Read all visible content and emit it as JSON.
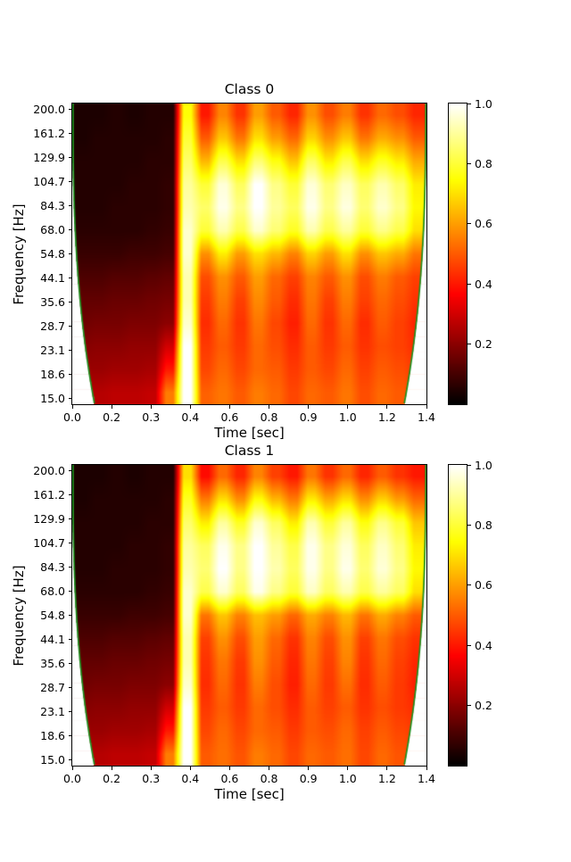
{
  "figure": {
    "background": "#ffffff",
    "text_color": "#000000"
  },
  "chart_data": [
    {
      "type": "heatmap",
      "title": "Class 0",
      "xlabel": "Time [sec]",
      "ylabel": "Frequency [Hz]",
      "x_tick_labels": [
        "0.0",
        "0.2",
        "0.3",
        "0.4",
        "0.6",
        "0.8",
        "0.9",
        "1.0",
        "1.2",
        "1.4"
      ],
      "y_tick_labels": [
        "200.0",
        "161.2",
        "129.9",
        "104.7",
        "84.3",
        "68.0",
        "54.8",
        "44.1",
        "35.6",
        "28.7",
        "23.1",
        "18.6",
        "15.0"
      ],
      "colorbar_tick_labels": [
        "1.0",
        "0.8",
        "0.6",
        "0.4",
        "0.2"
      ],
      "colormap": "hot",
      "coi_color": "#1d8f1d",
      "coi_note": "green cone-of-influence curve, masked white outside",
      "values": [
        [
          0.04,
          0.04,
          0.05,
          0.04,
          0.05,
          0.05,
          0.75,
          0.4,
          0.56,
          0.44,
          0.6,
          0.5,
          0.42,
          0.58,
          0.48,
          0.55,
          0.44,
          0.52,
          0.48,
          0.42
        ],
        [
          0.04,
          0.05,
          0.05,
          0.05,
          0.05,
          0.06,
          0.8,
          0.5,
          0.66,
          0.54,
          0.7,
          0.6,
          0.52,
          0.68,
          0.58,
          0.66,
          0.54,
          0.62,
          0.58,
          0.5
        ],
        [
          0.05,
          0.05,
          0.05,
          0.05,
          0.06,
          0.06,
          0.85,
          0.64,
          0.82,
          0.7,
          0.86,
          0.76,
          0.66,
          0.84,
          0.72,
          0.82,
          0.7,
          0.78,
          0.72,
          0.62
        ],
        [
          0.05,
          0.05,
          0.05,
          0.06,
          0.06,
          0.07,
          0.9,
          0.8,
          0.96,
          0.84,
          1.0,
          0.88,
          0.8,
          0.96,
          0.86,
          0.94,
          0.84,
          0.92,
          0.85,
          0.72
        ],
        [
          0.05,
          0.05,
          0.06,
          0.06,
          0.06,
          0.07,
          0.92,
          0.85,
          0.98,
          0.88,
          1.0,
          0.9,
          0.84,
          0.98,
          0.88,
          0.97,
          0.86,
          0.95,
          0.88,
          0.74
        ],
        [
          0.06,
          0.06,
          0.06,
          0.06,
          0.07,
          0.08,
          0.95,
          0.8,
          0.92,
          0.82,
          0.95,
          0.86,
          0.78,
          0.92,
          0.82,
          0.9,
          0.8,
          0.88,
          0.82,
          0.7
        ],
        [
          0.08,
          0.08,
          0.08,
          0.09,
          0.09,
          0.1,
          0.95,
          0.58,
          0.72,
          0.6,
          0.7,
          0.64,
          0.56,
          0.68,
          0.6,
          0.7,
          0.58,
          0.66,
          0.62,
          0.54
        ],
        [
          0.11,
          0.11,
          0.12,
          0.12,
          0.13,
          0.14,
          0.92,
          0.48,
          0.58,
          0.5,
          0.6,
          0.52,
          0.46,
          0.56,
          0.5,
          0.58,
          0.48,
          0.55,
          0.5,
          0.46
        ],
        [
          0.14,
          0.14,
          0.15,
          0.15,
          0.16,
          0.17,
          0.92,
          0.45,
          0.55,
          0.46,
          0.57,
          0.5,
          0.43,
          0.54,
          0.46,
          0.55,
          0.46,
          0.52,
          0.48,
          0.44
        ],
        [
          0.16,
          0.17,
          0.17,
          0.18,
          0.18,
          0.2,
          0.95,
          0.43,
          0.52,
          0.44,
          0.54,
          0.47,
          0.41,
          0.52,
          0.44,
          0.52,
          0.43,
          0.5,
          0.46,
          0.42
        ],
        [
          0.19,
          0.2,
          0.2,
          0.21,
          0.21,
          0.3,
          1.0,
          0.45,
          0.5,
          0.45,
          0.52,
          0.48,
          0.43,
          0.5,
          0.45,
          0.5,
          0.44,
          0.48,
          0.46,
          0.43
        ],
        [
          0.22,
          0.22,
          0.23,
          0.23,
          0.24,
          0.4,
          1.0,
          0.47,
          0.52,
          0.47,
          0.52,
          0.5,
          0.45,
          0.5,
          0.47,
          0.52,
          0.46,
          0.5,
          0.48,
          0.45
        ],
        [
          0.26,
          0.26,
          0.27,
          0.27,
          0.28,
          0.55,
          1.0,
          0.51,
          0.54,
          0.5,
          0.55,
          0.52,
          0.47,
          0.52,
          0.5,
          0.54,
          0.48,
          0.52,
          0.5,
          0.47
        ]
      ]
    },
    {
      "type": "heatmap",
      "title": "Class 1",
      "xlabel": "Time [sec]",
      "ylabel": "Frequency [Hz]",
      "x_tick_labels": [
        "0.0",
        "0.2",
        "0.3",
        "0.4",
        "0.6",
        "0.8",
        "0.9",
        "1.0",
        "1.2",
        "1.4"
      ],
      "y_tick_labels": [
        "200.0",
        "161.2",
        "129.9",
        "104.7",
        "84.3",
        "68.0",
        "54.8",
        "44.1",
        "35.6",
        "28.7",
        "23.1",
        "18.6",
        "15.0"
      ],
      "colorbar_tick_labels": [
        "1.0",
        "0.8",
        "0.6",
        "0.4",
        "0.2"
      ],
      "colormap": "hot",
      "coi_color": "#1d8f1d",
      "coi_note": "green cone-of-influence curve, masked white outside",
      "values": [
        [
          0.04,
          0.04,
          0.05,
          0.04,
          0.05,
          0.05,
          0.7,
          0.38,
          0.52,
          0.42,
          0.56,
          0.46,
          0.4,
          0.54,
          0.44,
          0.52,
          0.42,
          0.5,
          0.44,
          0.4
        ],
        [
          0.04,
          0.05,
          0.05,
          0.05,
          0.05,
          0.06,
          0.78,
          0.55,
          0.7,
          0.58,
          0.75,
          0.64,
          0.55,
          0.72,
          0.62,
          0.7,
          0.58,
          0.68,
          0.6,
          0.52
        ],
        [
          0.05,
          0.05,
          0.05,
          0.05,
          0.06,
          0.06,
          0.85,
          0.72,
          0.9,
          0.78,
          0.95,
          0.84,
          0.72,
          0.92,
          0.8,
          0.9,
          0.76,
          0.88,
          0.8,
          0.66
        ],
        [
          0.05,
          0.05,
          0.05,
          0.06,
          0.06,
          0.07,
          0.9,
          0.84,
          0.98,
          0.88,
          1.0,
          0.9,
          0.82,
          0.98,
          0.88,
          0.96,
          0.84,
          0.94,
          0.86,
          0.72
        ],
        [
          0.05,
          0.05,
          0.06,
          0.06,
          0.06,
          0.07,
          0.92,
          0.86,
          1.0,
          0.88,
          1.0,
          0.92,
          0.84,
          0.98,
          0.88,
          0.98,
          0.86,
          0.96,
          0.88,
          0.74
        ],
        [
          0.06,
          0.06,
          0.06,
          0.06,
          0.07,
          0.08,
          0.95,
          0.82,
          0.95,
          0.84,
          0.98,
          0.88,
          0.8,
          0.94,
          0.84,
          0.92,
          0.82,
          0.9,
          0.84,
          0.7
        ],
        [
          0.08,
          0.08,
          0.08,
          0.09,
          0.09,
          0.1,
          0.95,
          0.54,
          0.66,
          0.56,
          0.65,
          0.6,
          0.52,
          0.62,
          0.56,
          0.64,
          0.54,
          0.62,
          0.56,
          0.5
        ],
        [
          0.11,
          0.11,
          0.12,
          0.12,
          0.13,
          0.14,
          0.92,
          0.46,
          0.58,
          0.48,
          0.6,
          0.52,
          0.44,
          0.56,
          0.48,
          0.58,
          0.46,
          0.54,
          0.48,
          0.44
        ],
        [
          0.14,
          0.14,
          0.15,
          0.15,
          0.16,
          0.17,
          0.92,
          0.44,
          0.54,
          0.45,
          0.58,
          0.5,
          0.42,
          0.54,
          0.46,
          0.56,
          0.44,
          0.52,
          0.46,
          0.42
        ],
        [
          0.16,
          0.17,
          0.17,
          0.18,
          0.18,
          0.2,
          0.95,
          0.43,
          0.52,
          0.44,
          0.55,
          0.48,
          0.41,
          0.52,
          0.45,
          0.53,
          0.43,
          0.5,
          0.45,
          0.41
        ],
        [
          0.19,
          0.2,
          0.2,
          0.21,
          0.21,
          0.3,
          1.0,
          0.45,
          0.5,
          0.45,
          0.52,
          0.48,
          0.43,
          0.5,
          0.46,
          0.5,
          0.44,
          0.48,
          0.45,
          0.43
        ],
        [
          0.22,
          0.22,
          0.23,
          0.23,
          0.24,
          0.4,
          1.0,
          0.47,
          0.52,
          0.47,
          0.52,
          0.5,
          0.45,
          0.5,
          0.48,
          0.52,
          0.46,
          0.5,
          0.47,
          0.45
        ],
        [
          0.26,
          0.26,
          0.27,
          0.27,
          0.28,
          0.55,
          1.0,
          0.5,
          0.53,
          0.49,
          0.55,
          0.52,
          0.47,
          0.52,
          0.5,
          0.53,
          0.47,
          0.52,
          0.49,
          0.47
        ]
      ]
    }
  ]
}
